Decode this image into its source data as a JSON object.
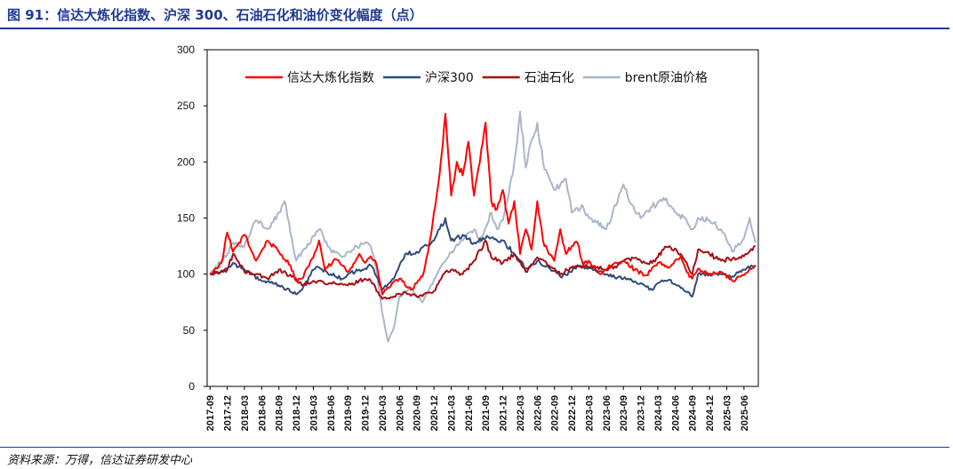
{
  "figure": {
    "title": "图 91：信达大炼化指数、沪深 300、石油石化和油价变化幅度（点）",
    "source": "资料来源：万得，信达证券研发中心"
  },
  "chart_data": {
    "type": "line",
    "title": "",
    "xlabel": "",
    "ylabel": "",
    "ylim": [
      0,
      300
    ],
    "yticks": [
      0,
      50,
      100,
      150,
      200,
      250,
      300
    ],
    "xlim": [
      "2017-09",
      "2025-08"
    ],
    "xticks": [
      "2017-09",
      "2017-12",
      "2018-03",
      "2018-06",
      "2018-09",
      "2018-12",
      "2019-03",
      "2019-06",
      "2019-09",
      "2019-12",
      "2020-03",
      "2020-06",
      "2020-09",
      "2020-12",
      "2021-03",
      "2021-06",
      "2021-09",
      "2021-12",
      "2022-03",
      "2022-06",
      "2022-09",
      "2022-12",
      "2023-03",
      "2023-06",
      "2023-09",
      "2023-12",
      "2024-03",
      "2024-06",
      "2024-09",
      "2024-12",
      "2025-03",
      "2025-06"
    ],
    "grid": false,
    "legend_position": "top",
    "series": [
      {
        "name": "信达大炼化指数",
        "color": "#ff0000",
        "width": 2,
        "x": [
          "2017-09",
          "2017-11",
          "2017-12",
          "2018-01",
          "2018-03",
          "2018-05",
          "2018-07",
          "2018-09",
          "2018-11",
          "2018-12",
          "2019-01",
          "2019-03",
          "2019-04",
          "2019-05",
          "2019-07",
          "2019-09",
          "2019-11",
          "2019-12",
          "2020-01",
          "2020-02",
          "2020-03",
          "2020-04",
          "2020-06",
          "2020-08",
          "2020-10",
          "2020-11",
          "2020-12",
          "2021-01",
          "2021-02",
          "2021-03",
          "2021-04",
          "2021-05",
          "2021-06",
          "2021-07",
          "2021-08",
          "2021-09",
          "2021-10",
          "2021-11",
          "2021-12",
          "2022-01",
          "2022-02",
          "2022-03",
          "2022-04",
          "2022-05",
          "2022-06",
          "2022-07",
          "2022-08",
          "2022-09",
          "2022-10",
          "2022-11",
          "2022-12",
          "2023-01",
          "2023-02",
          "2023-03",
          "2023-05",
          "2023-07",
          "2023-09",
          "2023-11",
          "2024-01",
          "2024-03",
          "2024-05",
          "2024-07",
          "2024-08",
          "2024-09",
          "2024-10",
          "2024-12",
          "2025-02",
          "2025-04",
          "2025-06",
          "2025-08"
        ],
        "y": [
          100,
          110,
          137,
          120,
          135,
          112,
          130,
          120,
          108,
          94,
          96,
          115,
          130,
          104,
          113,
          102,
          118,
          110,
          116,
          109,
          82,
          88,
          96,
          86,
          98,
          120,
          155,
          190,
          243,
          170,
          200,
          188,
          218,
          170,
          200,
          235,
          165,
          158,
          175,
          145,
          165,
          118,
          140,
          122,
          165,
          130,
          118,
          112,
          140,
          118,
          125,
          128,
          108,
          112,
          100,
          108,
          112,
          104,
          99,
          110,
          106,
          116,
          102,
          96,
          105,
          100,
          102,
          94,
          99,
          108
        ]
      },
      {
        "name": "沪深300",
        "color": "#2e4b7a",
        "width": 2,
        "x": [
          "2017-09",
          "2017-12",
          "2018-01",
          "2018-03",
          "2018-06",
          "2018-09",
          "2018-12",
          "2019-01",
          "2019-03",
          "2019-04",
          "2019-06",
          "2019-08",
          "2019-09",
          "2019-12",
          "2020-01",
          "2020-02",
          "2020-03",
          "2020-05",
          "2020-07",
          "2020-09",
          "2020-12",
          "2021-02",
          "2021-03",
          "2021-05",
          "2021-07",
          "2021-09",
          "2021-12",
          "2022-02",
          "2022-04",
          "2022-06",
          "2022-08",
          "2022-10",
          "2022-12",
          "2023-01",
          "2023-04",
          "2023-06",
          "2023-09",
          "2023-12",
          "2024-02",
          "2024-03",
          "2024-05",
          "2024-08",
          "2024-09",
          "2024-10",
          "2024-12",
          "2025-02",
          "2025-04",
          "2025-06",
          "2025-08"
        ],
        "y": [
          100,
          104,
          110,
          104,
          94,
          90,
          82,
          86,
          104,
          106,
          100,
          96,
          100,
          105,
          108,
          98,
          86,
          96,
          118,
          120,
          130,
          150,
          130,
          135,
          128,
          132,
          130,
          118,
          105,
          112,
          106,
          98,
          102,
          108,
          104,
          100,
          96,
          92,
          86,
          92,
          95,
          84,
          80,
          100,
          100,
          100,
          98,
          104,
          108
        ]
      },
      {
        "name": "石油石化",
        "color": "#a50f15",
        "width": 2,
        "x": [
          "2017-09",
          "2017-12",
          "2018-01",
          "2018-03",
          "2018-05",
          "2018-07",
          "2018-09",
          "2018-12",
          "2019-01",
          "2019-03",
          "2019-06",
          "2019-09",
          "2019-12",
          "2020-01",
          "2020-03",
          "2020-05",
          "2020-07",
          "2020-09",
          "2020-12",
          "2021-02",
          "2021-03",
          "2021-05",
          "2021-07",
          "2021-09",
          "2021-10",
          "2021-12",
          "2022-02",
          "2022-04",
          "2022-06",
          "2022-08",
          "2022-10",
          "2022-12",
          "2023-02",
          "2023-04",
          "2023-06",
          "2023-08",
          "2023-10",
          "2023-12",
          "2024-02",
          "2024-04",
          "2024-05",
          "2024-07",
          "2024-09",
          "2024-10",
          "2024-12",
          "2025-02",
          "2025-04",
          "2025-06",
          "2025-08"
        ],
        "y": [
          100,
          104,
          118,
          102,
          100,
          96,
          104,
          96,
          90,
          94,
          92,
          90,
          96,
          94,
          78,
          80,
          84,
          80,
          85,
          102,
          104,
          100,
          112,
          130,
          115,
          110,
          118,
          102,
          115,
          108,
          100,
          106,
          108,
          106,
          104,
          108,
          114,
          112,
          110,
          122,
          125,
          118,
          100,
          122,
          118,
          112,
          114,
          116,
          125
        ]
      },
      {
        "name": "brent原油价格",
        "color": "#aab6c8",
        "width": 2,
        "x": [
          "2017-09",
          "2017-12",
          "2018-01",
          "2018-03",
          "2018-05",
          "2018-07",
          "2018-09",
          "2018-10",
          "2018-12",
          "2019-01",
          "2019-04",
          "2019-06",
          "2019-08",
          "2019-09",
          "2019-12",
          "2020-01",
          "2020-02",
          "2020-03",
          "2020-04",
          "2020-05",
          "2020-06",
          "2020-08",
          "2020-10",
          "2020-12",
          "2021-01",
          "2021-03",
          "2021-05",
          "2021-07",
          "2021-08",
          "2021-10",
          "2021-11",
          "2021-12",
          "2022-01",
          "2022-02",
          "2022-03",
          "2022-04",
          "2022-05",
          "2022-06",
          "2022-07",
          "2022-09",
          "2022-11",
          "2022-12",
          "2023-02",
          "2023-03",
          "2023-04",
          "2023-06",
          "2023-08",
          "2023-09",
          "2023-10",
          "2023-12",
          "2024-02",
          "2024-04",
          "2024-06",
          "2024-08",
          "2024-09",
          "2024-10",
          "2024-12",
          "2025-02",
          "2025-04",
          "2025-06",
          "2025-07",
          "2025-08"
        ],
        "y": [
          100,
          118,
          128,
          125,
          148,
          140,
          155,
          165,
          112,
          120,
          140,
          122,
          115,
          120,
          128,
          125,
          105,
          65,
          40,
          52,
          80,
          88,
          75,
          95,
          105,
          120,
          130,
          140,
          128,
          155,
          140,
          148,
          170,
          200,
          245,
          195,
          220,
          235,
          200,
          175,
          185,
          155,
          160,
          150,
          148,
          140,
          165,
          180,
          165,
          150,
          160,
          168,
          155,
          148,
          140,
          150,
          148,
          140,
          120,
          132,
          150,
          128
        ]
      }
    ]
  }
}
